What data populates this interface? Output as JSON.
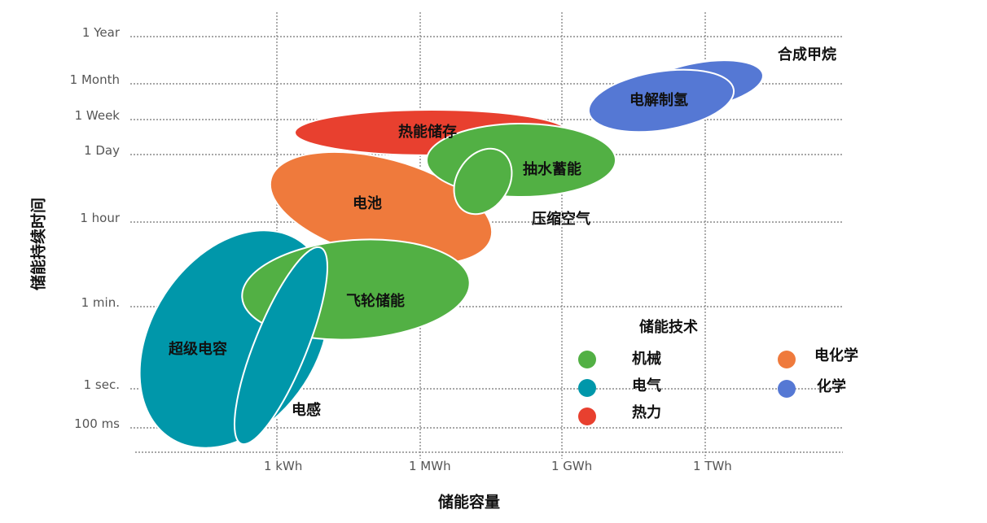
{
  "chart_data": {
    "type": "bubble-region",
    "xlabel": "储能容量",
    "ylabel": "储能持续时间",
    "x_scale": "log",
    "y_scale": "log",
    "x_ticks": [
      {
        "label": "1 kWh",
        "value_wh": 1000
      },
      {
        "label": "1 MWh",
        "value_wh": 1000000
      },
      {
        "label": "1 GWh",
        "value_wh": 1000000000
      },
      {
        "label": "1 TWh",
        "value_wh": 1000000000000
      }
    ],
    "y_ticks": [
      {
        "label": "1 Year",
        "value_s": 31536000
      },
      {
        "label": "1 Month",
        "value_s": 2592000
      },
      {
        "label": "1 Week",
        "value_s": 604800
      },
      {
        "label": "1 Day",
        "value_s": 86400
      },
      {
        "label": "1 hour",
        "value_s": 3600
      },
      {
        "label": "1 min.",
        "value_s": 60
      },
      {
        "label": "1 sec.",
        "value_s": 1
      },
      {
        "label": "100 ms",
        "value_s": 0.1
      }
    ],
    "grid": true,
    "legend": {
      "title": "储能技术",
      "position": "bottom-right",
      "items": [
        {
          "label": "机械",
          "category": "mechanical"
        },
        {
          "label": "电化学",
          "category": "electrochemical"
        },
        {
          "label": "电气",
          "category": "electrical"
        },
        {
          "label": "化学",
          "category": "chemical"
        },
        {
          "label": "热力",
          "category": "thermal"
        }
      ]
    },
    "colors": {
      "mechanical": "#52B044",
      "electrochemical": "#EF7A3C",
      "electrical": "#0097AA",
      "thermal": "#E8402F",
      "chemical": "#5578D4"
    },
    "technologies": [
      {
        "name": "超级电容",
        "category": "electrical",
        "capacity_range_wh": [
          10,
          30000
        ],
        "duration_range_s": [
          0.07,
          300
        ]
      },
      {
        "name": "电感",
        "category": "electrical",
        "capacity_range_wh": [
          400,
          30000
        ],
        "duration_range_s": [
          0.05,
          300
        ]
      },
      {
        "name": "飞轮储能",
        "category": "mechanical",
        "capacity_range_wh": [
          400,
          3000000
        ],
        "duration_range_s": [
          3,
          1200
        ]
      },
      {
        "name": "电池",
        "category": "electrochemical",
        "capacity_range_wh": [
          1000,
          30000000
        ],
        "duration_range_s": [
          300,
          100000
        ]
      },
      {
        "name": "热能储存",
        "category": "thermal",
        "capacity_range_wh": [
          10000,
          10000000000
        ],
        "duration_range_s": [
          50000,
          1000000
        ]
      },
      {
        "name": "抽水蓄能",
        "category": "mechanical",
        "capacity_range_wh": [
          1000000,
          30000000000
        ],
        "duration_range_s": [
          3000,
          400000
        ]
      },
      {
        "name": "压缩空气",
        "category": "mechanical",
        "capacity_range_wh": [
          10000000,
          1000000000
        ],
        "duration_range_s": [
          3000,
          200000
        ]
      },
      {
        "name": "电解制氢",
        "category": "chemical",
        "capacity_range_wh": [
          10000000000,
          10000000000000
        ],
        "duration_range_s": [
          300000,
          3000000
        ]
      },
      {
        "name": "合成甲烷",
        "category": "chemical",
        "capacity_range_wh": [
          100000000000,
          100000000000000
        ],
        "duration_range_s": [
          600000,
          5000000
        ]
      }
    ]
  }
}
